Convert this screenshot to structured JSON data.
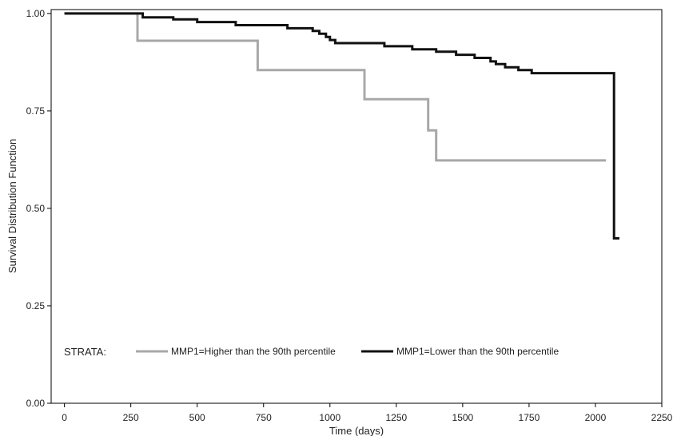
{
  "chart_data": {
    "type": "line",
    "step": true,
    "xlabel": "Time (days)",
    "ylabel": "Survival Distribution Function",
    "xlim": [
      -50,
      2250
    ],
    "ylim": [
      0,
      1.01
    ],
    "x_ticks": [
      0,
      250,
      500,
      750,
      1000,
      1250,
      1500,
      1750,
      2000,
      2250
    ],
    "x_tick_labels": [
      "0",
      "250",
      "500",
      "750",
      "1000",
      "1250",
      "1500",
      "1750",
      "2000",
      "2250"
    ],
    "y_ticks": [
      0,
      0.25,
      0.5,
      0.75,
      1.0
    ],
    "y_tick_labels": [
      "0.00",
      "0.25",
      "0.50",
      "0.75",
      "1.00"
    ],
    "legend_title": "STRATA:",
    "legend_position": "bottom-left inside plot",
    "grid": false,
    "series": [
      {
        "name": "MMP1=Higher than the 90th percentile",
        "color": "#a8a8a8",
        "points": [
          [
            0,
            1.0
          ],
          [
            275,
            1.0
          ],
          [
            275,
            0.93
          ],
          [
            728,
            0.93
          ],
          [
            728,
            0.855
          ],
          [
            1130,
            0.855
          ],
          [
            1130,
            0.78
          ],
          [
            1370,
            0.78
          ],
          [
            1370,
            0.7
          ],
          [
            1400,
            0.7
          ],
          [
            1400,
            0.623
          ],
          [
            2040,
            0.623
          ]
        ]
      },
      {
        "name": "MMP1=Lower than the 90th percentile",
        "color": "#111111",
        "points": [
          [
            0,
            1.0
          ],
          [
            295,
            1.0
          ],
          [
            295,
            0.99
          ],
          [
            410,
            0.99
          ],
          [
            410,
            0.985
          ],
          [
            500,
            0.985
          ],
          [
            500,
            0.978
          ],
          [
            645,
            0.978
          ],
          [
            645,
            0.97
          ],
          [
            840,
            0.97
          ],
          [
            840,
            0.962
          ],
          [
            935,
            0.962
          ],
          [
            935,
            0.955
          ],
          [
            960,
            0.955
          ],
          [
            960,
            0.948
          ],
          [
            985,
            0.948
          ],
          [
            985,
            0.94
          ],
          [
            1000,
            0.94
          ],
          [
            1000,
            0.932
          ],
          [
            1020,
            0.932
          ],
          [
            1020,
            0.924
          ],
          [
            1205,
            0.924
          ],
          [
            1205,
            0.916
          ],
          [
            1310,
            0.916
          ],
          [
            1310,
            0.908
          ],
          [
            1400,
            0.908
          ],
          [
            1400,
            0.902
          ],
          [
            1475,
            0.902
          ],
          [
            1475,
            0.894
          ],
          [
            1545,
            0.894
          ],
          [
            1545,
            0.886
          ],
          [
            1605,
            0.886
          ],
          [
            1605,
            0.877
          ],
          [
            1625,
            0.877
          ],
          [
            1625,
            0.87
          ],
          [
            1660,
            0.87
          ],
          [
            1660,
            0.862
          ],
          [
            1710,
            0.862
          ],
          [
            1710,
            0.855
          ],
          [
            1760,
            0.855
          ],
          [
            1760,
            0.847
          ],
          [
            2070,
            0.847
          ],
          [
            2070,
            0.423
          ],
          [
            2090,
            0.423
          ]
        ]
      }
    ]
  }
}
